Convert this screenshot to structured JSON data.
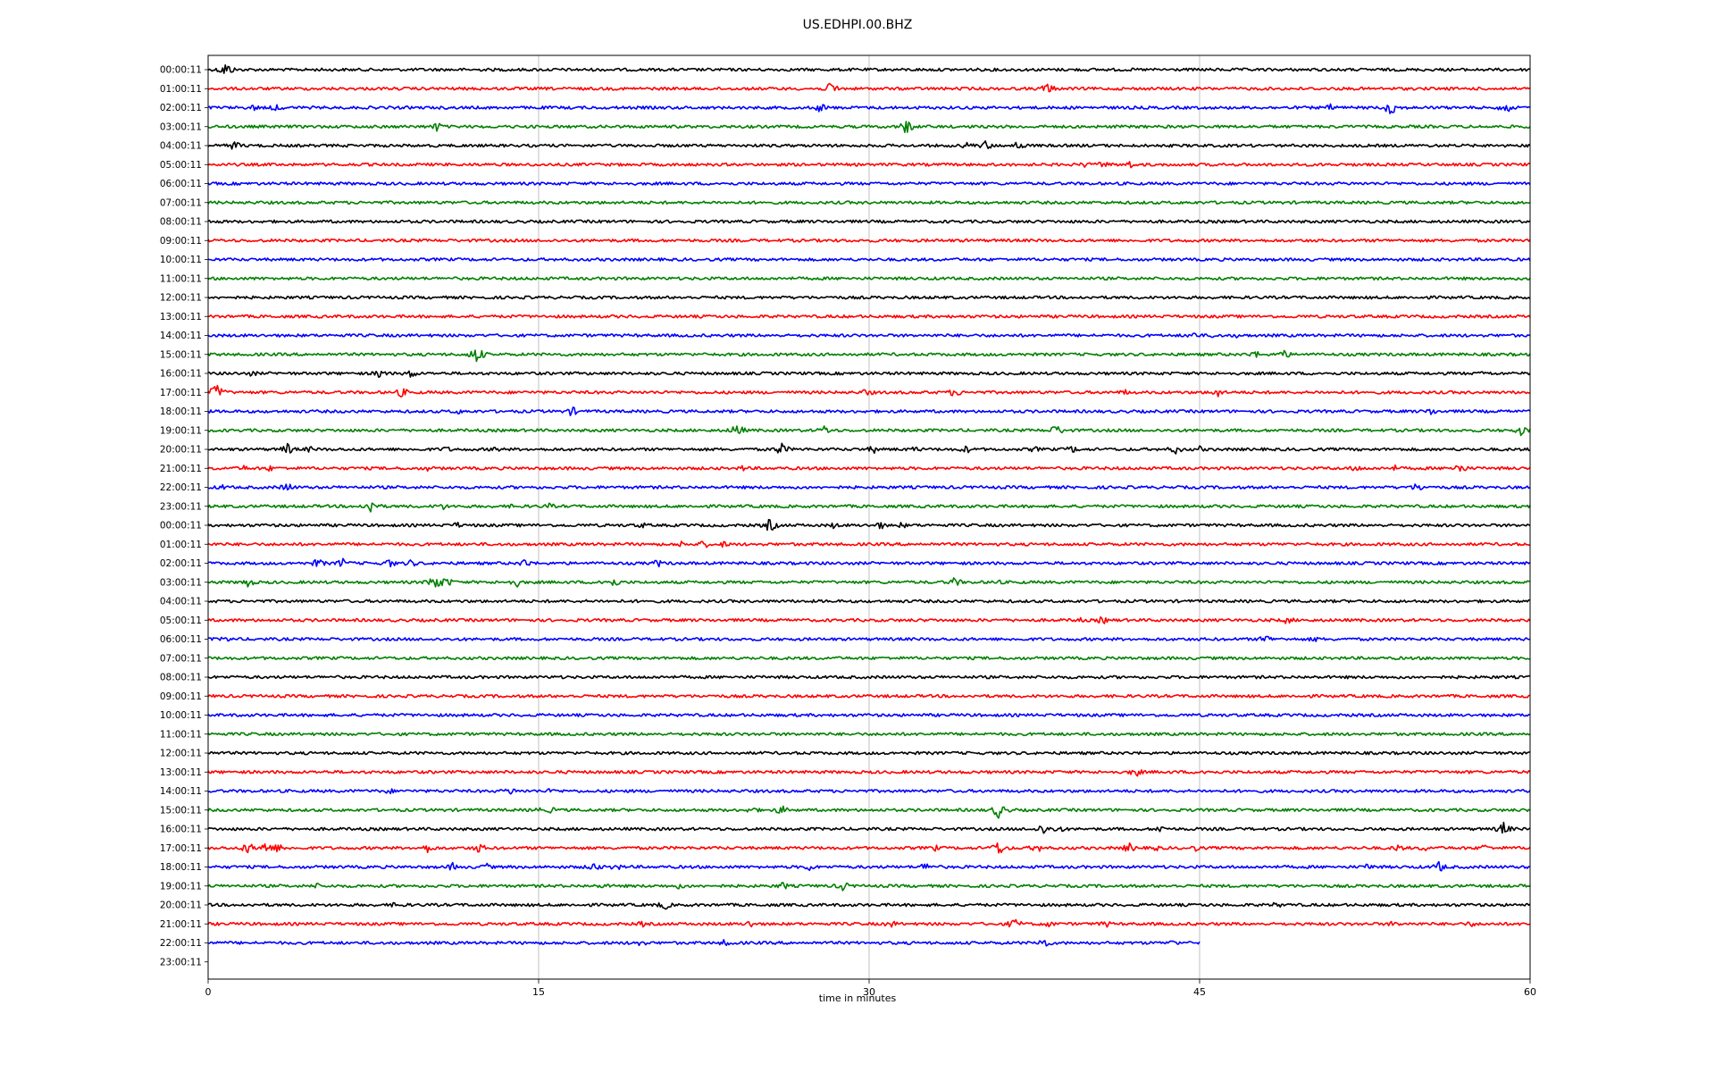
{
  "chart_data": {
    "type": "line",
    "title": "US.EDHPI.00.BHZ",
    "xlabel": "time in minutes",
    "ylabel": "",
    "xlim": [
      0,
      60
    ],
    "x_ticks": [
      "0",
      "15",
      "30",
      "45",
      "60"
    ],
    "x_tick_values": [
      0,
      15,
      30,
      45,
      60
    ],
    "grid": "vertical",
    "y_tick_labels": [
      "00:00:11",
      "01:00:11",
      "02:00:11",
      "03:00:11",
      "04:00:11",
      "05:00:11",
      "06:00:11",
      "07:00:11",
      "08:00:11",
      "09:00:11",
      "10:00:11",
      "11:00:11",
      "12:00:11",
      "13:00:11",
      "14:00:11",
      "15:00:11",
      "16:00:11",
      "17:00:11",
      "18:00:11",
      "19:00:11",
      "20:00:11",
      "21:00:11",
      "22:00:11",
      "23:00:11",
      "00:00:11",
      "01:00:11",
      "02:00:11",
      "03:00:11",
      "04:00:11",
      "05:00:11",
      "06:00:11",
      "07:00:11",
      "08:00:11",
      "09:00:11",
      "10:00:11",
      "11:00:11",
      "12:00:11",
      "13:00:11",
      "14:00:11",
      "15:00:11",
      "16:00:11",
      "17:00:11",
      "18:00:11",
      "19:00:11",
      "20:00:11",
      "21:00:11",
      "22:00:11",
      "23:00:11"
    ],
    "colors": [
      "#000000",
      "#ff0000",
      "#0000ff",
      "#008000"
    ],
    "trace_end_minutes": [
      60,
      60,
      60,
      60,
      60,
      60,
      60,
      60,
      60,
      60,
      60,
      60,
      60,
      60,
      60,
      60,
      60,
      60,
      60,
      60,
      60,
      60,
      60,
      60,
      60,
      60,
      60,
      60,
      60,
      60,
      60,
      60,
      60,
      60,
      60,
      60,
      60,
      60,
      60,
      60,
      60,
      60,
      60,
      60,
      60,
      60,
      45,
      0
    ],
    "events": [
      [
        [
          0.8,
          9
        ]
      ],
      [
        [
          28.3,
          8
        ],
        [
          38.1,
          7
        ]
      ],
      [
        [
          2.1,
          4
        ],
        [
          3.1,
          5
        ],
        [
          27.8,
          6
        ],
        [
          51.0,
          5
        ],
        [
          53.7,
          9
        ],
        [
          58.9,
          7
        ]
      ],
      [
        [
          10.4,
          6
        ],
        [
          31.7,
          9
        ]
      ],
      [
        [
          1.2,
          6
        ],
        [
          34.5,
          5
        ],
        [
          35.3,
          6
        ],
        [
          36.8,
          6
        ]
      ],
      [
        [
          39.8,
          4
        ],
        [
          40.6,
          5
        ],
        [
          41.8,
          5
        ]
      ],
      [],
      [],
      [],
      [],
      [],
      [],
      [],
      [],
      [
        [
          44.7,
          5
        ],
        [
          45.7,
          4
        ],
        [
          46.7,
          3
        ]
      ],
      [
        [
          12.2,
          10
        ],
        [
          47.5,
          5
        ],
        [
          48.8,
          6
        ]
      ],
      [
        [
          2.0,
          4
        ],
        [
          7.8,
          6
        ],
        [
          9.2,
          6
        ],
        [
          58.0,
          4
        ]
      ],
      [
        [
          0.4,
          10
        ],
        [
          8.8,
          6
        ],
        [
          29.9,
          5
        ],
        [
          33.9,
          6
        ],
        [
          41.6,
          4
        ],
        [
          45.8,
          6
        ]
      ],
      [
        [
          11.3,
          4
        ],
        [
          16.5,
          6
        ],
        [
          55.5,
          5
        ]
      ],
      [
        [
          24.0,
          8
        ],
        [
          28.0,
          6
        ],
        [
          38.5,
          7
        ],
        [
          59.6,
          6
        ]
      ],
      [
        [
          3.6,
          7
        ],
        [
          4.6,
          4
        ],
        [
          10.8,
          4
        ],
        [
          13.0,
          4
        ],
        [
          26.0,
          8
        ],
        [
          30.2,
          5
        ],
        [
          32.1,
          4
        ],
        [
          34.4,
          5
        ],
        [
          37.5,
          4
        ],
        [
          39.2,
          5
        ],
        [
          43.9,
          6
        ],
        [
          45.0,
          4
        ]
      ],
      [
        [
          1.6,
          4
        ],
        [
          2.8,
          4
        ],
        [
          10.0,
          4
        ],
        [
          24.3,
          4
        ],
        [
          52.1,
          5
        ],
        [
          53.9,
          4
        ],
        [
          56.8,
          7
        ]
      ],
      [
        [
          0.6,
          4
        ],
        [
          3.6,
          6
        ],
        [
          54.9,
          6
        ]
      ],
      [
        [
          7.4,
          9
        ],
        [
          10.6,
          5
        ],
        [
          13.9,
          4
        ],
        [
          15.5,
          4
        ]
      ],
      [
        [
          11.3,
          4
        ],
        [
          19.7,
          4
        ],
        [
          25.5,
          8
        ],
        [
          28.4,
          4
        ],
        [
          30.5,
          5
        ],
        [
          31.5,
          4
        ]
      ],
      [
        [
          21.5,
          4
        ],
        [
          22.5,
          5
        ],
        [
          23.4,
          4
        ]
      ],
      [
        [
          5.0,
          6
        ],
        [
          6.1,
          6
        ],
        [
          8.2,
          6
        ],
        [
          9.2,
          5
        ],
        [
          14.4,
          6
        ],
        [
          20.4,
          5
        ]
      ],
      [
        [
          1.8,
          6
        ],
        [
          10.3,
          10
        ],
        [
          10.8,
          7
        ],
        [
          14.0,
          6
        ],
        [
          17.8,
          4
        ],
        [
          18.4,
          6
        ],
        [
          33.9,
          6
        ],
        [
          35.8,
          4
        ]
      ],
      [],
      [
        [
          39.5,
          4
        ],
        [
          40.6,
          5
        ],
        [
          49.0,
          5
        ]
      ],
      [
        [
          0.8,
          4
        ],
        [
          48.0,
          6
        ],
        [
          50.2,
          4
        ]
      ],
      [],
      [],
      [],
      [],
      [],
      [],
      [
        [
          42.1,
          6
        ],
        [
          45.2,
          4
        ]
      ],
      [
        [
          8.2,
          4
        ],
        [
          13.7,
          5
        ],
        [
          15.6,
          4
        ]
      ],
      [
        [
          14.9,
          4
        ],
        [
          15.6,
          4
        ],
        [
          24.7,
          5
        ],
        [
          26.0,
          6
        ],
        [
          35.9,
          10
        ]
      ],
      [
        [
          37.9,
          7
        ],
        [
          38.6,
          5
        ],
        [
          43.2,
          5
        ],
        [
          58.8,
          8
        ]
      ],
      [
        [
          1.8,
          7
        ],
        [
          2.6,
          8
        ],
        [
          3.2,
          6
        ],
        [
          10.0,
          6
        ],
        [
          12.3,
          6
        ],
        [
          33.0,
          4
        ],
        [
          35.9,
          9
        ],
        [
          37.6,
          6
        ],
        [
          41.8,
          6
        ],
        [
          43.0,
          4
        ],
        [
          44.8,
          4
        ],
        [
          54.0,
          5
        ],
        [
          55.2,
          4
        ],
        [
          57.9,
          5
        ]
      ],
      [
        [
          11.1,
          5
        ],
        [
          12.6,
          5
        ],
        [
          17.5,
          6
        ],
        [
          18.5,
          5
        ],
        [
          27.3,
          5
        ],
        [
          32.6,
          6
        ],
        [
          52.7,
          5
        ],
        [
          55.9,
          7
        ]
      ],
      [
        [
          4.9,
          4
        ],
        [
          17.9,
          4
        ],
        [
          21.4,
          4
        ],
        [
          26.1,
          5
        ],
        [
          28.8,
          6
        ]
      ],
      [
        [
          8.6,
          5
        ],
        [
          20.7,
          6
        ],
        [
          48.5,
          4
        ]
      ],
      [
        [
          19.7,
          4
        ],
        [
          24.6,
          5
        ],
        [
          31.0,
          5
        ],
        [
          36.6,
          7
        ],
        [
          38.1,
          5
        ],
        [
          40.7,
          5
        ],
        [
          53.8,
          4
        ],
        [
          57.3,
          4
        ]
      ],
      [
        [
          19.6,
          5
        ],
        [
          23.5,
          5
        ],
        [
          37.9,
          7
        ],
        [
          43.8,
          4
        ]
      ],
      []
    ]
  }
}
